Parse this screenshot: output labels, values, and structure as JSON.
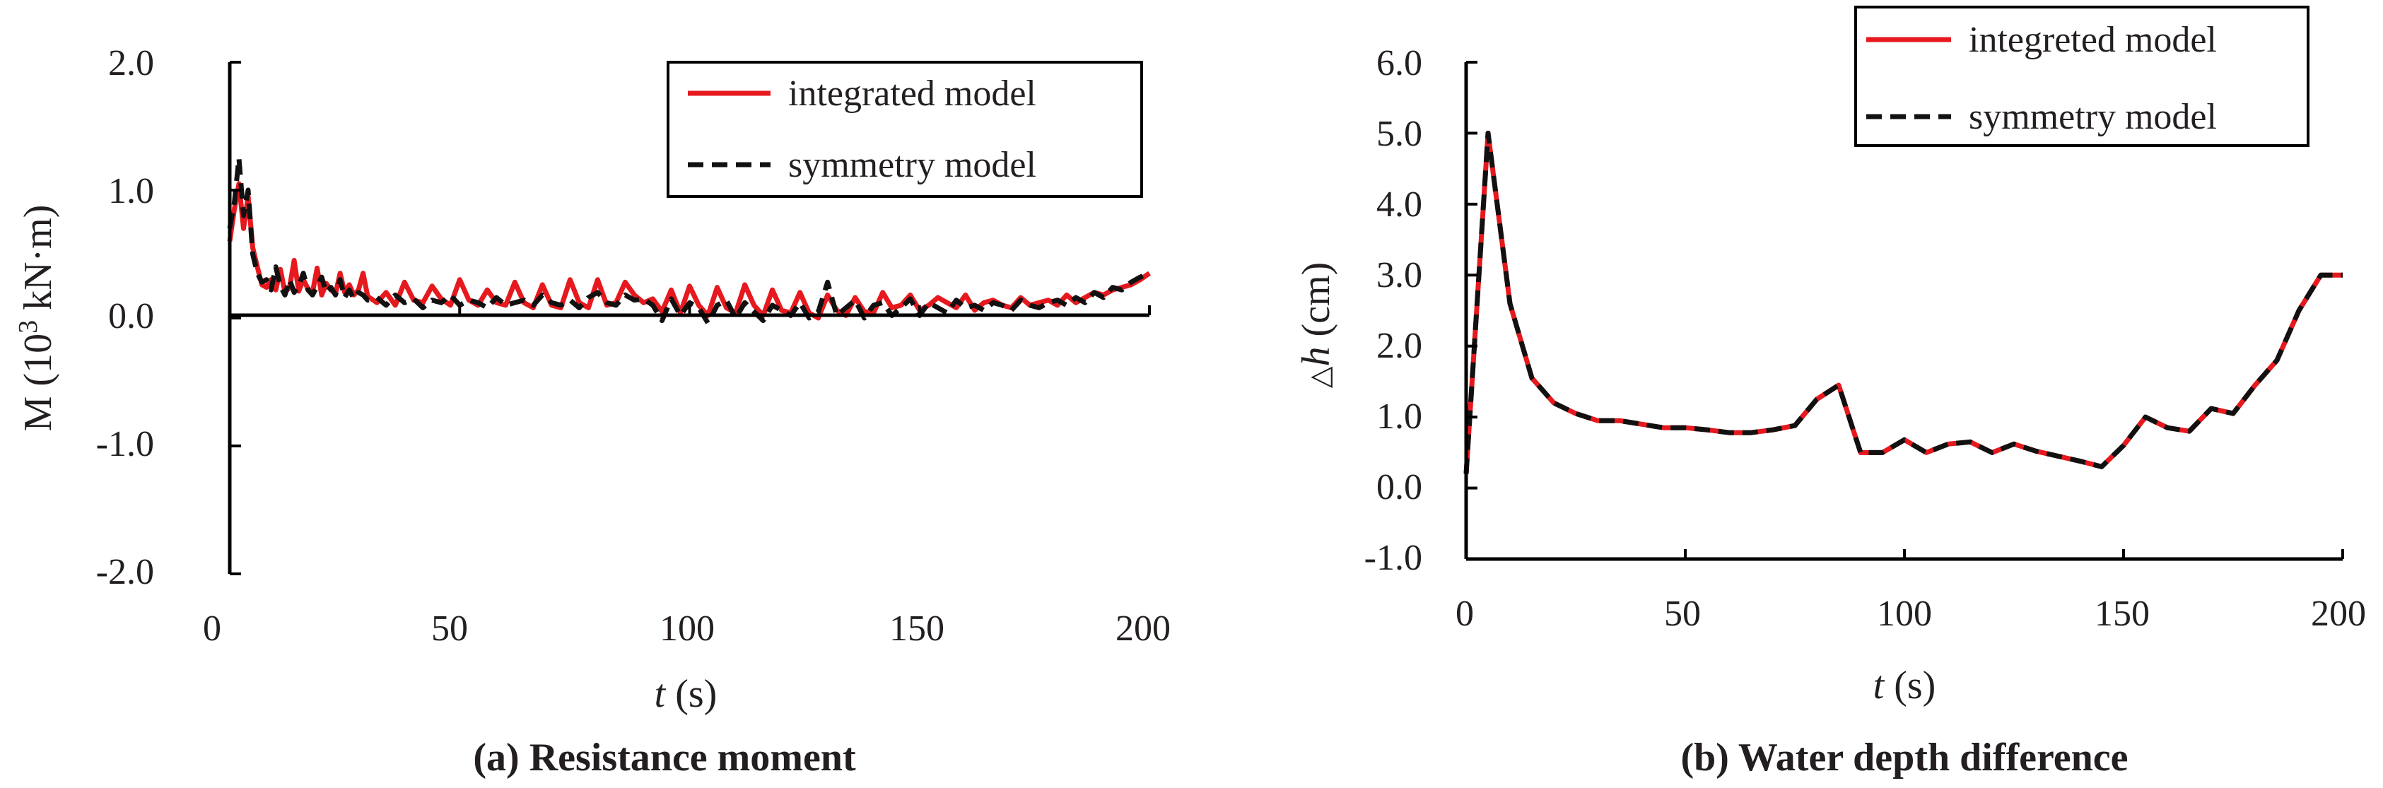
{
  "chart_data": [
    {
      "type": "line",
      "panel_caption": "(a) Resistance moment",
      "ylabel_prefix": "M (10",
      "ylabel_exp": "3",
      "ylabel_suffix": " kN·m)",
      "xlabel_var": "t",
      "xlabel_unit": " (s)",
      "xlim": [
        0,
        200
      ],
      "ylim": [
        -2.0,
        2.0
      ],
      "xticks": [
        0,
        50,
        100,
        150,
        200
      ],
      "xtick_labels": [
        "0",
        "50",
        "100",
        "150",
        "200"
      ],
      "yticks": [
        2.0,
        1.0,
        0.0,
        -1.0,
        -2.0
      ],
      "ytick_labels": [
        "2.0",
        "1.0",
        "0.0",
        "-1.0",
        "-2.0"
      ],
      "legend_position": "top-right",
      "series": [
        {
          "name": "integrated model",
          "color": "#e6191e",
          "dash": "solid",
          "x": [
            0,
            1,
            2,
            3,
            4,
            5,
            6,
            7,
            8,
            9,
            10,
            11,
            12,
            13,
            14,
            15,
            16,
            17,
            18,
            19,
            20,
            21,
            22,
            23,
            24,
            25,
            26,
            27,
            28,
            29,
            30,
            32,
            34,
            36,
            38,
            40,
            42,
            44,
            46,
            48,
            50,
            52,
            54,
            56,
            58,
            60,
            62,
            64,
            66,
            68,
            70,
            72,
            74,
            76,
            78,
            80,
            82,
            84,
            86,
            88,
            90,
            92,
            94,
            96,
            98,
            100,
            102,
            104,
            106,
            108,
            110,
            112,
            114,
            116,
            118,
            120,
            122,
            124,
            126,
            128,
            130,
            132,
            134,
            136,
            138,
            140,
            142,
            144,
            146,
            148,
            150,
            152,
            154,
            156,
            158,
            160,
            162,
            164,
            166,
            168,
            170,
            172,
            174,
            176,
            178,
            180,
            182,
            184,
            186,
            188,
            190,
            192,
            194,
            196,
            198,
            200
          ],
          "y": [
            0.6,
            0.85,
            1.05,
            0.7,
            0.95,
            0.55,
            0.4,
            0.26,
            0.24,
            0.3,
            0.22,
            0.38,
            0.2,
            0.24,
            0.45,
            0.21,
            0.3,
            0.23,
            0.2,
            0.39,
            0.18,
            0.27,
            0.22,
            0.19,
            0.35,
            0.2,
            0.26,
            0.18,
            0.22,
            0.35,
            0.17,
            0.12,
            0.2,
            0.1,
            0.28,
            0.14,
            0.12,
            0.25,
            0.15,
            0.1,
            0.3,
            0.14,
            0.1,
            0.22,
            0.12,
            0.1,
            0.28,
            0.12,
            0.08,
            0.26,
            0.1,
            0.08,
            0.3,
            0.12,
            0.08,
            0.3,
            0.1,
            0.12,
            0.28,
            0.18,
            0.12,
            0.15,
            0.05,
            0.22,
            0.04,
            0.25,
            0.1,
            0.02,
            0.24,
            0.08,
            0.04,
            0.26,
            0.1,
            0.02,
            0.22,
            0.06,
            0.04,
            0.2,
            0.04,
            0.0,
            0.18,
            0.06,
            0.02,
            0.16,
            0.05,
            0.04,
            0.2,
            0.08,
            0.1,
            0.18,
            0.06,
            0.1,
            0.16,
            0.12,
            0.08,
            0.18,
            0.06,
            0.12,
            0.14,
            0.1,
            0.08,
            0.16,
            0.1,
            0.12,
            0.14,
            0.1,
            0.18,
            0.12,
            0.16,
            0.2,
            0.18,
            0.22,
            0.24,
            0.26,
            0.3,
            0.35
          ]
        },
        {
          "name": "symmetry model",
          "color": "#111111",
          "dash": "dashed",
          "x": [
            0,
            1,
            2,
            3,
            4,
            5,
            6,
            7,
            8,
            9,
            10,
            11,
            12,
            13,
            14,
            15,
            16,
            17,
            18,
            19,
            20,
            21,
            22,
            23,
            24,
            25,
            26,
            27,
            28,
            29,
            30,
            32,
            34,
            36,
            38,
            40,
            42,
            44,
            46,
            48,
            50,
            52,
            54,
            56,
            58,
            60,
            62,
            64,
            66,
            68,
            70,
            72,
            74,
            76,
            78,
            80,
            82,
            84,
            86,
            88,
            90,
            92,
            94,
            96,
            98,
            100,
            102,
            104,
            106,
            108,
            110,
            112,
            114,
            116,
            118,
            120,
            122,
            124,
            126,
            128,
            130,
            132,
            134,
            136,
            138,
            140,
            142,
            144,
            146,
            148,
            150,
            152,
            154,
            156,
            158,
            160,
            162,
            164,
            166,
            168,
            170,
            172,
            174,
            176,
            178,
            180,
            182,
            184,
            186,
            188,
            190,
            192,
            194,
            196,
            198,
            200
          ],
          "y": [
            0.7,
            0.9,
            1.25,
            0.8,
            1.0,
            0.5,
            0.35,
            0.28,
            0.3,
            0.22,
            0.4,
            0.25,
            0.18,
            0.3,
            0.2,
            0.25,
            0.35,
            0.22,
            0.18,
            0.25,
            0.32,
            0.2,
            0.24,
            0.18,
            0.3,
            0.16,
            0.22,
            0.15,
            0.2,
            0.18,
            0.14,
            0.16,
            0.1,
            0.18,
            0.12,
            0.15,
            0.08,
            0.14,
            0.12,
            0.18,
            0.1,
            0.14,
            0.12,
            0.08,
            0.16,
            0.1,
            0.12,
            0.14,
            0.1,
            0.18,
            0.12,
            0.1,
            0.14,
            0.08,
            0.16,
            0.2,
            0.12,
            0.1,
            0.18,
            0.14,
            0.15,
            0.1,
            -0.02,
            0.15,
            0.02,
            0.12,
            0.08,
            -0.04,
            0.1,
            0.14,
            0.0,
            0.12,
            0.05,
            -0.02,
            0.1,
            0.06,
            0.02,
            0.12,
            0.0,
            0.05,
            0.28,
            0.02,
            0.08,
            0.14,
            0.0,
            0.1,
            0.12,
            0.02,
            0.08,
            0.15,
            0.02,
            0.12,
            0.08,
            0.04,
            0.14,
            0.08,
            0.1,
            0.06,
            0.12,
            0.1,
            0.06,
            0.14,
            0.1,
            0.08,
            0.12,
            0.14,
            0.1,
            0.16,
            0.12,
            0.2,
            0.16,
            0.24,
            0.22,
            0.28,
            0.32,
            0.35
          ]
        }
      ]
    },
    {
      "type": "line",
      "panel_caption": "(b) Water depth difference",
      "ylabel_prefix": "△",
      "ylabel_var": "h",
      "ylabel_suffix": " (cm)",
      "xlabel_var": "t",
      "xlabel_unit": " (s)",
      "xlim": [
        0,
        200
      ],
      "ylim": [
        -1.0,
        6.0
      ],
      "xticks": [
        0,
        50,
        100,
        150,
        200
      ],
      "xtick_labels": [
        "0",
        "50",
        "100",
        "150",
        "200"
      ],
      "yticks": [
        6.0,
        5.0,
        4.0,
        3.0,
        2.0,
        1.0,
        0.0,
        -1.0
      ],
      "ytick_labels": [
        "6.0",
        "5.0",
        "4.0",
        "3.0",
        "2.0",
        "1.0",
        "0.0",
        "-1.0"
      ],
      "legend_position": "top-right",
      "series": [
        {
          "name": "integreted model",
          "color": "#e6191e",
          "dash": "solid",
          "x": [
            0,
            5,
            10,
            15,
            20,
            25,
            30,
            35,
            40,
            45,
            50,
            55,
            60,
            65,
            70,
            75,
            80,
            85,
            90,
            95,
            100,
            105,
            110,
            115,
            120,
            125,
            130,
            135,
            140,
            145,
            150,
            155,
            160,
            165,
            170,
            175,
            180,
            185,
            190,
            195,
            200
          ],
          "y": [
            0.2,
            5.0,
            2.6,
            1.55,
            1.2,
            1.05,
            0.95,
            0.95,
            0.9,
            0.85,
            0.85,
            0.82,
            0.78,
            0.78,
            0.82,
            0.88,
            1.25,
            1.45,
            0.5,
            0.5,
            0.68,
            0.5,
            0.62,
            0.65,
            0.5,
            0.62,
            0.52,
            0.45,
            0.38,
            0.3,
            0.6,
            1.0,
            0.85,
            0.8,
            1.12,
            1.05,
            1.45,
            1.8,
            2.5,
            3.0,
            3.0
          ]
        },
        {
          "name": "symmetry model",
          "color": "#111111",
          "dash": "dashed",
          "x": [
            0,
            5,
            10,
            15,
            20,
            25,
            30,
            35,
            40,
            45,
            50,
            55,
            60,
            65,
            70,
            75,
            80,
            85,
            90,
            95,
            100,
            105,
            110,
            115,
            120,
            125,
            130,
            135,
            140,
            145,
            150,
            155,
            160,
            165,
            170,
            175,
            180,
            185,
            190,
            195,
            200
          ],
          "y": [
            0.2,
            5.0,
            2.6,
            1.55,
            1.2,
            1.05,
            0.95,
            0.95,
            0.9,
            0.85,
            0.85,
            0.82,
            0.78,
            0.78,
            0.82,
            0.88,
            1.25,
            1.45,
            0.5,
            0.5,
            0.68,
            0.5,
            0.62,
            0.65,
            0.5,
            0.62,
            0.52,
            0.45,
            0.38,
            0.3,
            0.6,
            1.0,
            0.85,
            0.8,
            1.12,
            1.05,
            1.45,
            1.8,
            2.5,
            3.0,
            3.0
          ]
        }
      ]
    }
  ]
}
